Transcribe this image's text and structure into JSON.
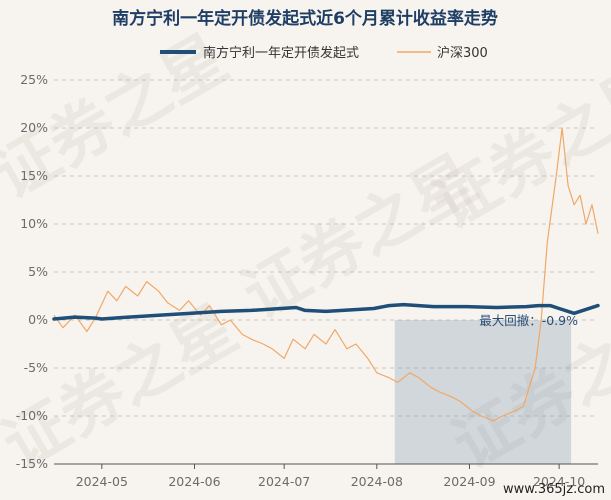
{
  "chart_data": {
    "type": "line",
    "title": "南方宁利一年定开债发起式近6个月累计收益率走势",
    "y_ticks": [
      "25%",
      "20%",
      "15%",
      "10%",
      "5%",
      "0%",
      "-5%",
      "-10%",
      "-15%"
    ],
    "ylim": [
      -15,
      25
    ],
    "x_ticks": [
      "2024-05",
      "2024-06",
      "2024-07",
      "2024-08",
      "2024-09",
      "2024-10"
    ],
    "x_range": [
      "2024-04-15",
      "2024-10-14"
    ],
    "grid": true,
    "legend_position": "top",
    "series": [
      {
        "name": "南方宁利一年定开债发起式",
        "color": "#1f4e79",
        "x": [
          "2024-04-15",
          "2024-04-22",
          "2024-04-29",
          "2024-05-01",
          "2024-05-10",
          "2024-05-20",
          "2024-05-31",
          "2024-06-10",
          "2024-06-20",
          "2024-06-30",
          "2024-07-05",
          "2024-07-08",
          "2024-07-15",
          "2024-07-31",
          "2024-08-05",
          "2024-08-10",
          "2024-08-20",
          "2024-08-31",
          "2024-09-10",
          "2024-09-20",
          "2024-09-24",
          "2024-09-28",
          "2024-10-01",
          "2024-10-06",
          "2024-10-14"
        ],
        "values": [
          0.1,
          0.3,
          0.2,
          0.1,
          0.3,
          0.5,
          0.7,
          0.9,
          1.0,
          1.2,
          1.3,
          1.0,
          0.9,
          1.2,
          1.5,
          1.6,
          1.4,
          1.4,
          1.3,
          1.4,
          1.5,
          1.5,
          1.2,
          0.7,
          1.5
        ]
      },
      {
        "name": "沪深300",
        "color": "#f0a868",
        "x": [
          "2024-04-15",
          "2024-04-18",
          "2024-04-22",
          "2024-04-26",
          "2024-04-29",
          "2024-05-03",
          "2024-05-06",
          "2024-05-09",
          "2024-05-13",
          "2024-05-16",
          "2024-05-20",
          "2024-05-23",
          "2024-05-27",
          "2024-05-30",
          "2024-06-03",
          "2024-06-06",
          "2024-06-10",
          "2024-06-13",
          "2024-06-17",
          "2024-06-20",
          "2024-06-24",
          "2024-06-27",
          "2024-07-01",
          "2024-07-04",
          "2024-07-08",
          "2024-07-11",
          "2024-07-15",
          "2024-07-18",
          "2024-07-22",
          "2024-07-25",
          "2024-07-29",
          "2024-08-01",
          "2024-08-05",
          "2024-08-08",
          "2024-08-12",
          "2024-08-15",
          "2024-08-19",
          "2024-08-22",
          "2024-08-26",
          "2024-08-29",
          "2024-09-02",
          "2024-09-05",
          "2024-09-09",
          "2024-09-12",
          "2024-09-16",
          "2024-09-19",
          "2024-09-23",
          "2024-09-25",
          "2024-09-27",
          "2024-09-30",
          "2024-10-02",
          "2024-10-04",
          "2024-10-06",
          "2024-10-08",
          "2024-10-10",
          "2024-10-12",
          "2024-10-14"
        ],
        "values": [
          0.5,
          -0.8,
          0.5,
          -1.2,
          0.3,
          3.0,
          2.0,
          3.5,
          2.5,
          4.0,
          3.0,
          1.8,
          1.0,
          2.0,
          0.5,
          1.5,
          -0.5,
          0.0,
          -1.5,
          -2.0,
          -2.5,
          -3.0,
          -4.0,
          -2.0,
          -3.0,
          -1.5,
          -2.5,
          -1.0,
          -3.0,
          -2.5,
          -4.0,
          -5.5,
          -6.0,
          -6.5,
          -5.5,
          -6.0,
          -7.0,
          -7.5,
          -8.0,
          -8.5,
          -9.5,
          -10.0,
          -10.5,
          -10.0,
          -9.5,
          -9.0,
          -5.0,
          0.0,
          8.0,
          15.0,
          20.0,
          14.0,
          12.0,
          13.0,
          10.0,
          12.0,
          9.0
        ]
      }
    ],
    "annotation": {
      "label": "最大回撤：-0.9%",
      "shaded_start": "2024-08-07",
      "shaded_end": "2024-10-05",
      "color": "#8aa0b8"
    },
    "watermark": "证券之星",
    "site": "www.365jz.com"
  }
}
